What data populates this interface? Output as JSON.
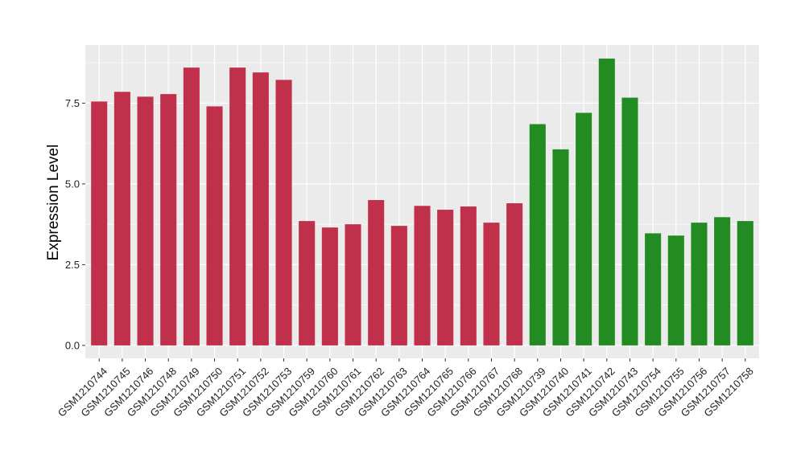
{
  "chart_data": {
    "type": "bar",
    "title": "",
    "xlabel": "",
    "ylabel": "Expression Level",
    "ylim": [
      -0.4,
      9.3
    ],
    "yticks": [
      0.0,
      2.5,
      5.0,
      7.5
    ],
    "ytick_labels": [
      "0.0",
      "2.5",
      "5.0",
      "7.5"
    ],
    "grid": true,
    "legend": "none",
    "categories": [
      "GSM1210744",
      "GSM1210745",
      "GSM1210746",
      "GSM1210748",
      "GSM1210749",
      "GSM1210750",
      "GSM1210751",
      "GSM1210752",
      "GSM1210753",
      "GSM1210759",
      "GSM1210760",
      "GSM1210761",
      "GSM1210762",
      "GSM1210763",
      "GSM1210764",
      "GSM1210765",
      "GSM1210766",
      "GSM1210767",
      "GSM1210768",
      "GSM1210739",
      "GSM1210740",
      "GSM1210741",
      "GSM1210742",
      "GSM1210743",
      "GSM1210754",
      "GSM1210755",
      "GSM1210756",
      "GSM1210757",
      "GSM1210758"
    ],
    "values": [
      7.55,
      7.85,
      7.7,
      7.78,
      8.6,
      7.4,
      8.6,
      8.45,
      8.22,
      3.85,
      3.65,
      3.75,
      4.5,
      3.7,
      4.32,
      4.2,
      4.3,
      3.8,
      4.4,
      6.85,
      6.07,
      7.2,
      8.88,
      7.67,
      3.47,
      3.4,
      3.8,
      3.97,
      3.85
    ],
    "bar_colors": [
      "#C0304A",
      "#C0304A",
      "#C0304A",
      "#C0304A",
      "#C0304A",
      "#C0304A",
      "#C0304A",
      "#C0304A",
      "#C0304A",
      "#C0304A",
      "#C0304A",
      "#C0304A",
      "#C0304A",
      "#C0304A",
      "#C0304A",
      "#C0304A",
      "#C0304A",
      "#C0304A",
      "#C0304A",
      "#228B22",
      "#228B22",
      "#228B22",
      "#228B22",
      "#228B22",
      "#228B22",
      "#228B22",
      "#228B22",
      "#228B22",
      "#228B22"
    ],
    "colors": {
      "panel_background": "#EBEBEB",
      "grid_major": "#FFFFFF",
      "axis_tick": "#333333"
    }
  }
}
